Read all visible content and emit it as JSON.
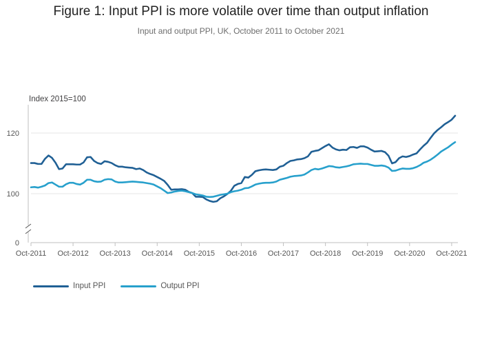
{
  "title": "Figure 1: Input PPI is more volatile over time than output inflation",
  "subtitle": "Input and output PPI, UK, October 2011 to October 2021",
  "chart_data": {
    "type": "line",
    "ylabel": "Index 2015=100",
    "y_ticks": [
      "0",
      "100",
      "120"
    ],
    "ylim_display": [
      84,
      130
    ],
    "axis_break": true,
    "x_tick_labels": [
      "Oct-2011",
      "Oct-2012",
      "Oct-2013",
      "Oct-2014",
      "Oct-2015",
      "Oct-2016",
      "Oct-2017",
      "Oct-2018",
      "Oct-2019",
      "Oct-2020",
      "Oct-2021"
    ],
    "x_start": "2011-10",
    "x_end": "2021-10",
    "grid": true,
    "legend_position": "bottom-left",
    "series": [
      {
        "name": "Input PPI",
        "color": "#206095",
        "values": [
          110.1,
          110.1,
          109.8,
          109.8,
          111.5,
          112.6,
          111.8,
          110.2,
          108.1,
          108.3,
          109.7,
          109.7,
          109.7,
          109.6,
          109.6,
          110.3,
          112.0,
          112.1,
          110.8,
          110.1,
          109.8,
          110.7,
          110.5,
          110.1,
          109.4,
          108.9,
          108.9,
          108.7,
          108.6,
          108.5,
          108.1,
          108.3,
          107.8,
          107.0,
          106.5,
          106.1,
          105.5,
          104.9,
          104.2,
          102.9,
          101.3,
          101.4,
          101.4,
          101.5,
          101.3,
          100.6,
          100.2,
          99.0,
          99.0,
          98.9,
          98.1,
          97.6,
          97.3,
          97.5,
          98.5,
          99.1,
          99.9,
          100.9,
          102.6,
          103.2,
          103.5,
          105.5,
          105.3,
          106.2,
          107.4,
          107.7,
          107.9,
          108.0,
          107.9,
          107.8,
          108.0,
          108.9,
          109.2,
          110.1,
          110.8,
          111.0,
          111.3,
          111.4,
          111.7,
          112.3,
          113.8,
          114.1,
          114.3,
          115.0,
          115.7,
          116.3,
          115.2,
          114.6,
          114.3,
          114.5,
          114.4,
          115.3,
          115.4,
          115.1,
          115.6,
          115.6,
          115.2,
          114.5,
          113.9,
          114.0,
          114.1,
          113.7,
          112.5,
          110.0,
          110.4,
          111.7,
          112.3,
          112.1,
          112.4,
          112.9,
          113.3,
          114.6,
          115.8,
          116.8,
          118.4,
          119.9,
          121.0,
          121.9,
          122.9,
          123.6,
          124.4,
          125.7
        ]
      },
      {
        "name": "Output PPI",
        "color": "#27a0cc",
        "values": [
          102.1,
          102.2,
          102.0,
          102.3,
          102.7,
          103.5,
          103.7,
          103.0,
          102.3,
          102.3,
          103.1,
          103.6,
          103.6,
          103.2,
          103.0,
          103.6,
          104.6,
          104.6,
          104.1,
          103.9,
          104.0,
          104.6,
          104.8,
          104.7,
          104.0,
          103.7,
          103.7,
          103.8,
          103.9,
          104.0,
          103.9,
          103.8,
          103.7,
          103.5,
          103.3,
          103.0,
          102.4,
          101.8,
          101.0,
          100.2,
          100.4,
          100.7,
          100.9,
          101.0,
          100.8,
          100.5,
          100.2,
          99.8,
          99.6,
          99.4,
          99.0,
          98.9,
          99.0,
          99.3,
          99.6,
          99.8,
          100.0,
          100.5,
          100.8,
          101.0,
          101.3,
          101.8,
          101.9,
          102.4,
          103.0,
          103.3,
          103.5,
          103.6,
          103.6,
          103.7,
          104.0,
          104.6,
          104.9,
          105.2,
          105.6,
          105.8,
          105.9,
          106.0,
          106.3,
          107.0,
          107.8,
          108.2,
          108.0,
          108.3,
          108.7,
          109.1,
          109.0,
          108.7,
          108.6,
          108.8,
          109.0,
          109.3,
          109.7,
          109.8,
          109.9,
          109.8,
          109.8,
          109.5,
          109.2,
          109.2,
          109.3,
          109.1,
          108.6,
          107.5,
          107.6,
          108.0,
          108.3,
          108.2,
          108.2,
          108.4,
          108.8,
          109.4,
          110.2,
          110.6,
          111.2,
          112.0,
          112.9,
          113.9,
          114.6,
          115.3,
          116.2,
          117.0
        ]
      }
    ]
  }
}
